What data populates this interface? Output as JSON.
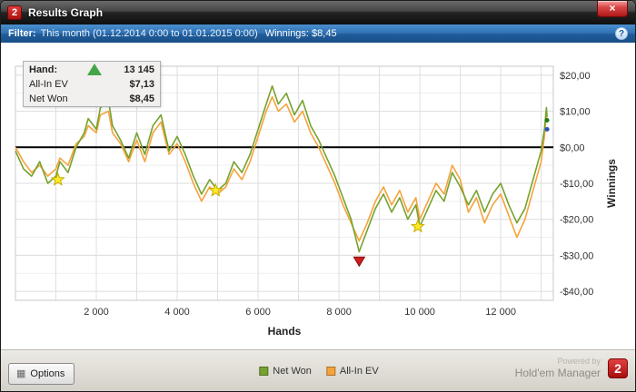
{
  "window": {
    "title": "Results Graph",
    "logo_text": "2",
    "close_glyph": "×"
  },
  "filter_bar": {
    "label": "Filter:",
    "value": "This month (01.12.2014 0:00 to 01.01.2015 0:00)",
    "winnings": "Winnings: $8,45",
    "help_glyph": "?"
  },
  "info_box": {
    "hand_label": "Hand:",
    "hand_value": "13 145",
    "allin_label": "All-In EV",
    "allin_value": "$7,13",
    "netwon_label": "Net Won",
    "netwon_value": "$8,45"
  },
  "legend": {
    "items": [
      {
        "label": "Net Won",
        "color": "#76A22E"
      },
      {
        "label": "All-In EV",
        "color": "#F5A33C"
      }
    ]
  },
  "footer": {
    "options_label": "Options",
    "options_icon": "▦",
    "powered_by": "Powered by",
    "brand": "Hold'em Manager",
    "brand_logo_text": "2"
  },
  "chart_data": {
    "type": "line",
    "title": "",
    "xlabel": "Hands",
    "ylabel": "Winnings",
    "xlim": [
      0,
      13300
    ],
    "ylim": [
      -42.5,
      22.5
    ],
    "x_ticks": [
      2000,
      4000,
      6000,
      8000,
      10000,
      12000
    ],
    "x_tick_labels": [
      "2 000",
      "4 000",
      "6 000",
      "8 000",
      "10 000",
      "12 000"
    ],
    "y_ticks": [
      20,
      10,
      0,
      -10,
      -20,
      -30,
      -40
    ],
    "y_tick_labels": [
      "$20,00",
      "$10,00",
      "$0,00",
      "-$10,00",
      "-$20,00",
      "-$30,00",
      "-$40,00"
    ],
    "grid_x_step": 1000,
    "zero_line": 0,
    "final_hand": 13145,
    "series": [
      {
        "name": "Net Won",
        "color": "#76A22E",
        "final_value": 8.45,
        "points": [
          [
            0,
            -1
          ],
          [
            200,
            -6
          ],
          [
            400,
            -8
          ],
          [
            600,
            -4
          ],
          [
            800,
            -10
          ],
          [
            1000,
            -8
          ],
          [
            1100,
            -4
          ],
          [
            1300,
            -7
          ],
          [
            1500,
            0
          ],
          [
            1700,
            4
          ],
          [
            1800,
            8
          ],
          [
            2000,
            5
          ],
          [
            2100,
            11
          ],
          [
            2300,
            13
          ],
          [
            2400,
            6
          ],
          [
            2600,
            2
          ],
          [
            2800,
            -3
          ],
          [
            3000,
            4
          ],
          [
            3200,
            -2
          ],
          [
            3400,
            6
          ],
          [
            3600,
            9
          ],
          [
            3800,
            -1
          ],
          [
            4000,
            3
          ],
          [
            4200,
            -2
          ],
          [
            4400,
            -8
          ],
          [
            4600,
            -13
          ],
          [
            4800,
            -9
          ],
          [
            5000,
            -12
          ],
          [
            5200,
            -10
          ],
          [
            5400,
            -4
          ],
          [
            5600,
            -7
          ],
          [
            5800,
            -2
          ],
          [
            6000,
            5
          ],
          [
            6200,
            12
          ],
          [
            6350,
            17
          ],
          [
            6500,
            12
          ],
          [
            6700,
            15
          ],
          [
            6900,
            9
          ],
          [
            7100,
            13
          ],
          [
            7300,
            6
          ],
          [
            7500,
            2
          ],
          [
            7700,
            -3
          ],
          [
            7900,
            -8
          ],
          [
            8100,
            -14
          ],
          [
            8300,
            -20
          ],
          [
            8500,
            -29
          ],
          [
            8700,
            -23
          ],
          [
            8900,
            -17
          ],
          [
            9100,
            -13
          ],
          [
            9300,
            -18
          ],
          [
            9500,
            -14
          ],
          [
            9700,
            -20
          ],
          [
            9900,
            -16
          ],
          [
            10000,
            -22
          ],
          [
            10200,
            -17
          ],
          [
            10400,
            -12
          ],
          [
            10600,
            -15
          ],
          [
            10800,
            -7
          ],
          [
            11000,
            -11
          ],
          [
            11200,
            -16
          ],
          [
            11400,
            -12
          ],
          [
            11600,
            -18
          ],
          [
            11800,
            -13
          ],
          [
            12000,
            -10
          ],
          [
            12200,
            -16
          ],
          [
            12400,
            -21
          ],
          [
            12600,
            -17
          ],
          [
            12800,
            -9
          ],
          [
            13000,
            -1
          ],
          [
            13080,
            5
          ],
          [
            13130,
            11
          ],
          [
            13145,
            8.45
          ]
        ]
      },
      {
        "name": "All-In EV",
        "color": "#F5A33C",
        "final_value": 7.13,
        "points": [
          [
            0,
            0
          ],
          [
            200,
            -4
          ],
          [
            400,
            -7
          ],
          [
            600,
            -5
          ],
          [
            800,
            -8
          ],
          [
            1000,
            -6
          ],
          [
            1100,
            -3
          ],
          [
            1300,
            -5
          ],
          [
            1500,
            1
          ],
          [
            1700,
            3
          ],
          [
            1800,
            6
          ],
          [
            2000,
            4
          ],
          [
            2100,
            9
          ],
          [
            2300,
            10
          ],
          [
            2400,
            4
          ],
          [
            2600,
            1
          ],
          [
            2800,
            -4
          ],
          [
            3000,
            2
          ],
          [
            3200,
            -4
          ],
          [
            3400,
            4
          ],
          [
            3600,
            7
          ],
          [
            3800,
            -2
          ],
          [
            4000,
            1
          ],
          [
            4200,
            -4
          ],
          [
            4400,
            -10
          ],
          [
            4600,
            -15
          ],
          [
            4800,
            -11
          ],
          [
            5000,
            -13
          ],
          [
            5200,
            -11
          ],
          [
            5400,
            -6
          ],
          [
            5600,
            -9
          ],
          [
            5800,
            -4
          ],
          [
            6000,
            3
          ],
          [
            6200,
            10
          ],
          [
            6350,
            14
          ],
          [
            6500,
            10
          ],
          [
            6700,
            12
          ],
          [
            6900,
            7
          ],
          [
            7100,
            10
          ],
          [
            7300,
            4
          ],
          [
            7500,
            0
          ],
          [
            7700,
            -5
          ],
          [
            7900,
            -10
          ],
          [
            8100,
            -16
          ],
          [
            8300,
            -21
          ],
          [
            8500,
            -26
          ],
          [
            8700,
            -21
          ],
          [
            8900,
            -15
          ],
          [
            9100,
            -11
          ],
          [
            9300,
            -16
          ],
          [
            9500,
            -12
          ],
          [
            9700,
            -18
          ],
          [
            9900,
            -14
          ],
          [
            10000,
            -20
          ],
          [
            10200,
            -15
          ],
          [
            10400,
            -10
          ],
          [
            10600,
            -13
          ],
          [
            10800,
            -5
          ],
          [
            11000,
            -9
          ],
          [
            11200,
            -18
          ],
          [
            11400,
            -14
          ],
          [
            11600,
            -21
          ],
          [
            11800,
            -16
          ],
          [
            12000,
            -13
          ],
          [
            12200,
            -19
          ],
          [
            12400,
            -25
          ],
          [
            12600,
            -20
          ],
          [
            12800,
            -12
          ],
          [
            13000,
            -4
          ],
          [
            13080,
            3
          ],
          [
            13130,
            9
          ],
          [
            13145,
            7.13
          ]
        ]
      }
    ],
    "markers": {
      "stars": [
        [
          1050,
          -9
        ],
        [
          4950,
          -12
        ],
        [
          9950,
          -22
        ]
      ],
      "red_triangle": [
        8500,
        -33
      ],
      "end_dots": [
        {
          "x": 13145,
          "y": 7.5,
          "color": "#1f7a1f"
        },
        {
          "x": 13145,
          "y": 5.0,
          "color": "#2a52be"
        }
      ]
    }
  }
}
